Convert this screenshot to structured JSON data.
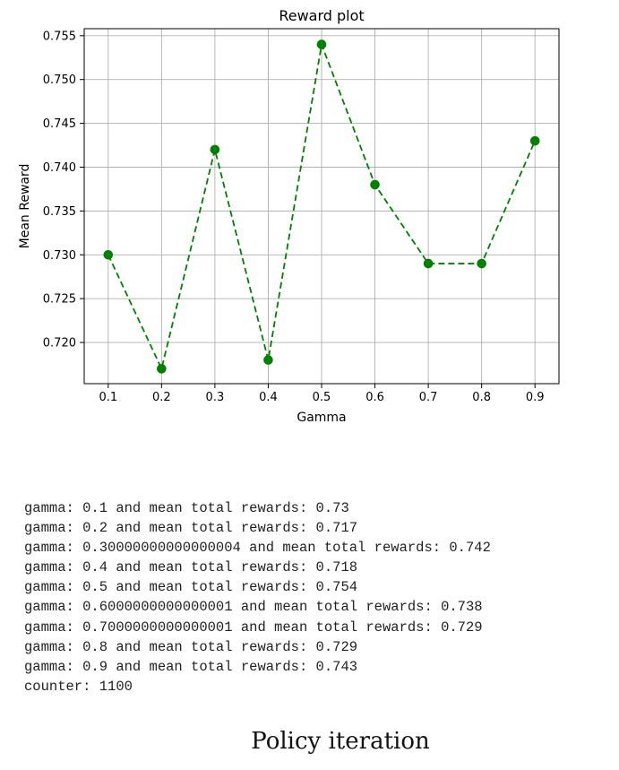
{
  "chart_data": {
    "type": "line",
    "title": "Reward plot",
    "xlabel": "Gamma",
    "ylabel": "Mean Reward",
    "x": [
      0.1,
      0.2,
      0.3,
      0.4,
      0.5,
      0.6,
      0.7,
      0.8,
      0.9
    ],
    "series": [
      {
        "values": [
          0.73,
          0.717,
          0.742,
          0.718,
          0.754,
          0.738,
          0.729,
          0.729,
          0.743
        ],
        "color": "#008000",
        "line_style": "dashed",
        "marker": "circle"
      }
    ],
    "xticks": [
      "0.1",
      "0.2",
      "0.3",
      "0.4",
      "0.5",
      "0.6",
      "0.7",
      "0.8",
      "0.9"
    ],
    "yticks": [
      "0.720",
      "0.725",
      "0.730",
      "0.735",
      "0.740",
      "0.745",
      "0.750",
      "0.755"
    ],
    "ytick_values": [
      0.72,
      0.725,
      0.73,
      0.735,
      0.74,
      0.745,
      0.75,
      0.755
    ],
    "xlim": [
      0.055,
      0.945
    ],
    "ylim": [
      0.7153,
      0.7558
    ],
    "grid": true
  },
  "output": {
    "lines": [
      "gamma: 0.1 and mean total rewards: 0.73",
      "gamma: 0.2 and mean total rewards: 0.717",
      "gamma: 0.30000000000000004 and mean total rewards: 0.742",
      "gamma: 0.4 and mean total rewards: 0.718",
      "gamma: 0.5 and mean total rewards: 0.754",
      "gamma: 0.6000000000000001 and mean total rewards: 0.738",
      "gamma: 0.7000000000000001 and mean total rewards: 0.729",
      "gamma: 0.8 and mean total rewards: 0.729",
      "gamma: 0.9 and mean total rewards: 0.743",
      "counter: 1100"
    ]
  },
  "caption": "Policy iteration"
}
